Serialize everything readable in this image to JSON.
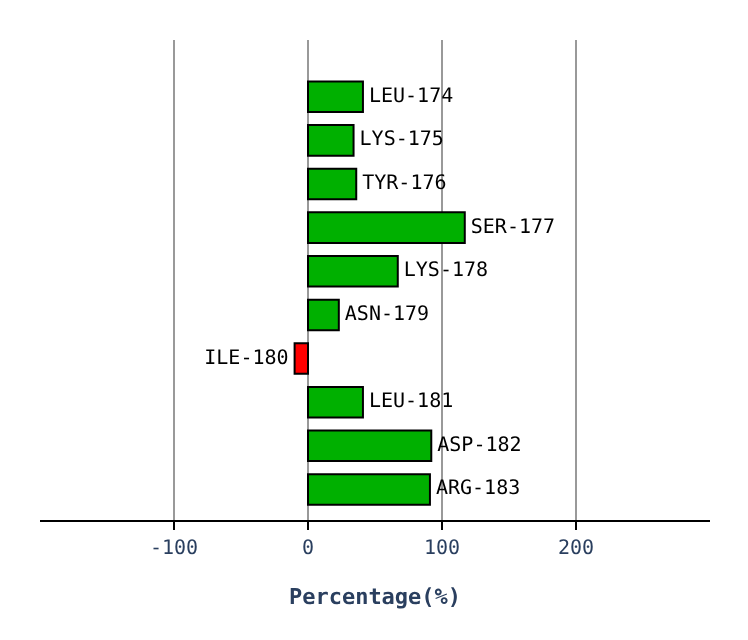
{
  "chart_data": {
    "type": "bar",
    "orientation": "horizontal",
    "xlabel": "Percentage(%)",
    "categories": [
      "LEU-174",
      "LYS-175",
      "TYR-176",
      "SER-177",
      "LYS-178",
      "ASN-179",
      "ILE-180",
      "LEU-181",
      "ASP-182",
      "ARG-183"
    ],
    "values": [
      41,
      34,
      36,
      117,
      67,
      23,
      -10,
      41,
      92,
      91
    ],
    "colors": [
      "#00b000",
      "#00b000",
      "#00b000",
      "#00b000",
      "#00b000",
      "#00b000",
      "#ff0000",
      "#00b000",
      "#00b000",
      "#00b000"
    ],
    "xlim": [
      -200,
      300
    ],
    "xticks": [
      -100,
      0,
      100,
      200
    ],
    "grid": "x",
    "tick_labels": "x"
  }
}
